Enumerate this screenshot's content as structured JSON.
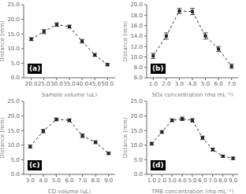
{
  "chart_data": [
    {
      "type": "line",
      "annotation": "(a)",
      "x_label": "Sample volume (μL)",
      "y_label": "Distance (mm)",
      "x": [
        20,
        25,
        30,
        35,
        40,
        45,
        50
      ],
      "values": [
        13.2,
        15.8,
        18.2,
        17.5,
        12.5,
        7.8,
        4.5
      ],
      "yerr": [
        0.5,
        0.7,
        0.6,
        0.5,
        0.6,
        0.5,
        0.4
      ],
      "xlim": [
        17,
        53
      ],
      "ylim": [
        0.0,
        25.0
      ],
      "xticks": [
        {
          "value": 20,
          "label": "20.0"
        },
        {
          "value": 25,
          "label": "25.0"
        },
        {
          "value": 30,
          "label": "30.0"
        },
        {
          "value": 35,
          "label": "35.0"
        },
        {
          "value": 40,
          "label": "40.0"
        },
        {
          "value": 45,
          "label": "45.0"
        },
        {
          "value": 50,
          "label": "50.0"
        }
      ],
      "yticks": [
        {
          "value": 0,
          "label": "0.0"
        },
        {
          "value": 5,
          "label": "5.0"
        },
        {
          "value": 10,
          "label": "10.0"
        },
        {
          "value": 15,
          "label": "15.0"
        },
        {
          "value": 20,
          "label": "20.0"
        },
        {
          "value": 25,
          "label": "25.0"
        }
      ],
      "color": "#222222",
      "marker": "square",
      "line_style": "dashed"
    },
    {
      "type": "line",
      "annotation": "(b)",
      "x_label": "SOx concentration (mg mL⁻¹)",
      "y_label": "Distance (mm)",
      "x": [
        1.0,
        2.0,
        3.0,
        4.0,
        5.0,
        6.0,
        7.0
      ],
      "values": [
        10.2,
        14.0,
        18.8,
        18.7,
        14.0,
        11.5,
        8.2
      ],
      "yerr": [
        0.5,
        0.6,
        0.5,
        0.6,
        0.6,
        0.5,
        0.4
      ],
      "xlim": [
        0.5,
        7.5
      ],
      "ylim": [
        6.0,
        20.0
      ],
      "xticks": [
        {
          "value": 1,
          "label": "1.0"
        },
        {
          "value": 2,
          "label": "2.0"
        },
        {
          "value": 3,
          "label": "3.0"
        },
        {
          "value": 4,
          "label": "4.0"
        },
        {
          "value": 5,
          "label": "5.0"
        },
        {
          "value": 6,
          "label": "6.0"
        },
        {
          "value": 7,
          "label": "7.0"
        }
      ],
      "yticks": [
        {
          "value": 6,
          "label": "6.0"
        },
        {
          "value": 8,
          "label": "8.0"
        },
        {
          "value": 10,
          "label": "10.0"
        },
        {
          "value": 12,
          "label": "12.0"
        },
        {
          "value": 14,
          "label": "14.0"
        },
        {
          "value": 16,
          "label": "16.0"
        },
        {
          "value": 18,
          "label": "18.0"
        },
        {
          "value": 20,
          "label": "20.0"
        }
      ],
      "color": "#222222",
      "marker": "square",
      "line_style": "dashed"
    },
    {
      "type": "line",
      "annotation": "(c)",
      "x_label": "CD volume (μL)",
      "y_label": "Distance (mm)",
      "x": [
        3.0,
        4.0,
        5.0,
        6.0,
        7.0,
        8.0,
        9.0
      ],
      "values": [
        9.5,
        14.8,
        18.8,
        18.5,
        13.2,
        11.0,
        7.2
      ],
      "yerr": [
        0.5,
        0.6,
        0.5,
        0.5,
        0.6,
        0.5,
        0.4
      ],
      "xlim": [
        2.5,
        9.5
      ],
      "ylim": [
        0.0,
        25.0
      ],
      "xticks": [
        {
          "value": 3,
          "label": "3.0"
        },
        {
          "value": 4,
          "label": "4.0"
        },
        {
          "value": 5,
          "label": "5.0"
        },
        {
          "value": 6,
          "label": "6.0"
        },
        {
          "value": 7,
          "label": "7.0"
        },
        {
          "value": 8,
          "label": "8.0"
        },
        {
          "value": 9,
          "label": "9.0"
        }
      ],
      "yticks": [
        {
          "value": 0,
          "label": "0.0"
        },
        {
          "value": 5,
          "label": "5.0"
        },
        {
          "value": 10,
          "label": "10.0"
        },
        {
          "value": 15,
          "label": "15.0"
        },
        {
          "value": 20,
          "label": "20.0"
        },
        {
          "value": 25,
          "label": "25.0"
        }
      ],
      "color": "#222222",
      "marker": "square",
      "line_style": "dashed"
    },
    {
      "type": "line",
      "annotation": "(d)",
      "x_label": "TMB concentration (mg mL⁻¹)",
      "y_label": "Distance (mm)",
      "x": [
        1.0,
        2.0,
        3.0,
        4.0,
        5.0,
        6.0,
        7.0,
        8.0,
        9.0
      ],
      "values": [
        10.5,
        14.5,
        18.5,
        19.0,
        18.5,
        12.5,
        8.5,
        6.2,
        5.5
      ],
      "yerr": [
        0.5,
        0.5,
        0.5,
        0.6,
        0.6,
        0.6,
        0.5,
        0.4,
        0.4
      ],
      "xlim": [
        0.5,
        9.5
      ],
      "ylim": [
        0.0,
        25.0
      ],
      "xticks": [
        {
          "value": 1,
          "label": "1.0"
        },
        {
          "value": 2,
          "label": "2.0"
        },
        {
          "value": 3,
          "label": "3.0"
        },
        {
          "value": 4,
          "label": "4.0"
        },
        {
          "value": 5,
          "label": "5.0"
        },
        {
          "value": 6,
          "label": "6.0"
        },
        {
          "value": 7,
          "label": "7.0"
        },
        {
          "value": 8,
          "label": "8.0"
        },
        {
          "value": 9,
          "label": "9.0"
        }
      ],
      "yticks": [
        {
          "value": 0,
          "label": "0.0"
        },
        {
          "value": 5,
          "label": "5.0"
        },
        {
          "value": 10,
          "label": "10.0"
        },
        {
          "value": 15,
          "label": "15.0"
        },
        {
          "value": 20,
          "label": "20.0"
        },
        {
          "value": 25,
          "label": "25.0"
        }
      ],
      "color": "#222222",
      "marker": "square",
      "line_style": "dashed"
    }
  ]
}
